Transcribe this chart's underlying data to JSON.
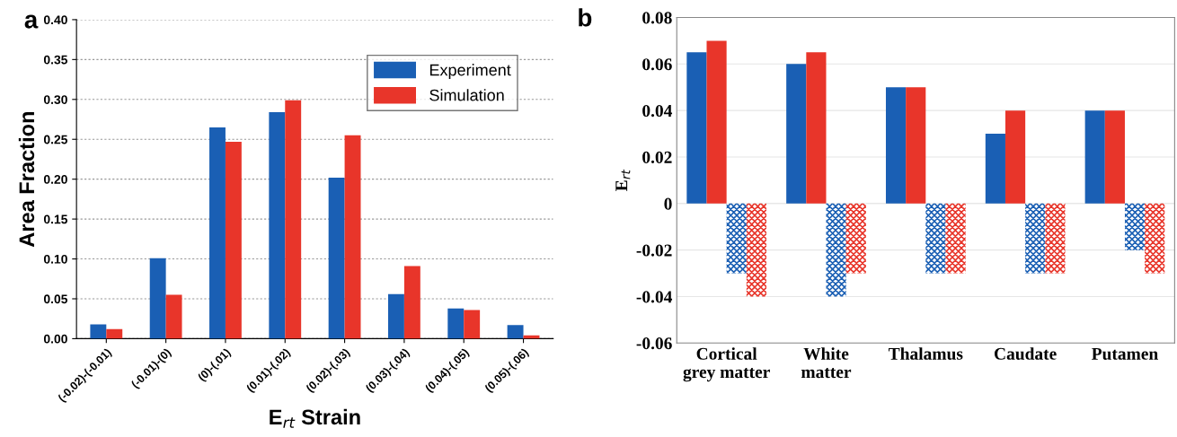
{
  "chart_data": [
    {
      "type": "bar",
      "title": "a",
      "xlabel": "E$_{rt}$ Strain",
      "ylabel": "Area Fraction",
      "categories": [
        "(-0.02)-(-0.01)",
        "(-0.01)-(0)",
        "(0)-(.01)",
        "(0.01)-(.02)",
        "(0.02)-(.03)",
        "(0.03)-(.04)",
        "(0.04)-(.05)",
        "(0.05)-(.06)"
      ],
      "series": [
        {
          "name": "Experiment",
          "color": "#1a5fb4",
          "values": [
            0.018,
            0.101,
            0.265,
            0.284,
            0.202,
            0.056,
            0.038,
            0.017
          ]
        },
        {
          "name": "Simulation",
          "color": "#e8352a",
          "values": [
            0.012,
            0.055,
            0.247,
            0.299,
            0.255,
            0.091,
            0.036,
            0.004
          ]
        }
      ],
      "ylim": [
        0,
        0.4
      ],
      "yticks": [
        {
          "value": 0,
          "label": "0.00"
        },
        {
          "value": 0.05,
          "label": "0.05"
        },
        {
          "value": 0.1,
          "label": "0.10"
        },
        {
          "value": 0.15,
          "label": "0.15"
        },
        {
          "value": 0.2,
          "label": "0.20"
        },
        {
          "value": 0.25,
          "label": "0.25"
        },
        {
          "value": 0.3,
          "label": "0.30"
        },
        {
          "value": 0.35,
          "label": "0.35"
        },
        {
          "value": 0.4,
          "label": "0.40"
        }
      ],
      "grid": "y",
      "legend": "top right"
    },
    {
      "type": "bar",
      "title": "b",
      "ylabel": "E$_{rt}$",
      "categories": [
        "Cortical\ngrey matter",
        "White\nmatter",
        "Thalamus",
        "Caudate",
        "Putamen"
      ],
      "series": [
        {
          "color": "#1a5fb4",
          "values": [
            0.065,
            0.06,
            0.05,
            0.03,
            0.04
          ]
        },
        {
          "color": "#e8352a",
          "values": [
            0.07,
            0.065,
            0.05,
            0.04,
            0.04
          ]
        },
        {
          "color": "#1a5fb4",
          "values": [
            -0.03,
            -0.04,
            -0.03,
            -0.03,
            -0.02
          ]
        },
        {
          "color": "#e8352a",
          "values": [
            -0.04,
            -0.03,
            -0.03,
            -0.03,
            -0.03
          ]
        }
      ],
      "ylim": [
        -0.06,
        0.08
      ],
      "yticks": [
        -0.06,
        -0.04,
        -0.02,
        0,
        0.02,
        0.04,
        0.06,
        0.08
      ],
      "grid": "y"
    }
  ]
}
